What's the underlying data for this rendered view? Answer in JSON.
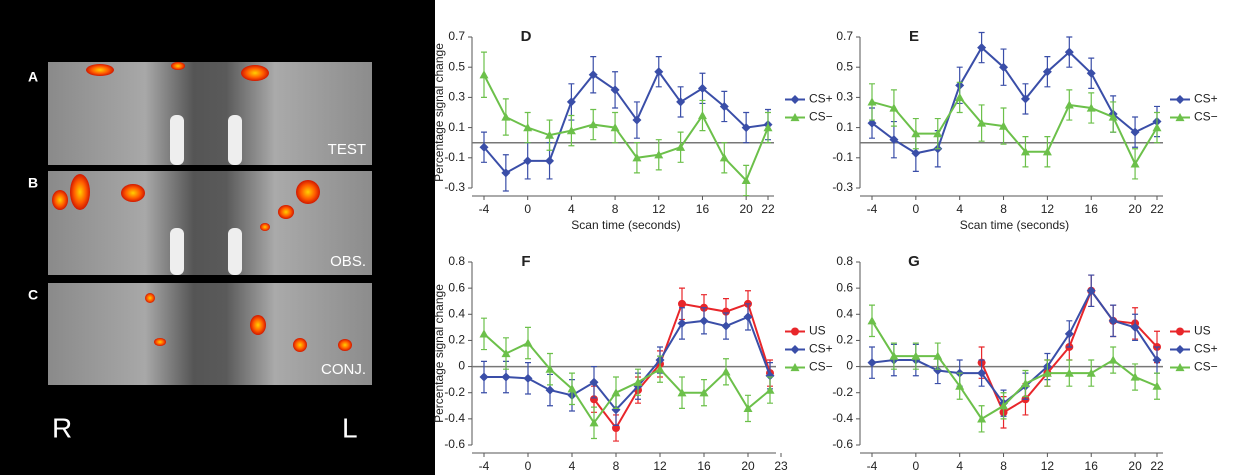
{
  "image_panel": {
    "panels": [
      {
        "letter": "A",
        "label": "TEST"
      },
      {
        "letter": "B",
        "label": "OBS."
      },
      {
        "letter": "C",
        "label": "CONJ."
      }
    ],
    "left_side": "R",
    "right_side": "L"
  },
  "chart_data": [
    {
      "type": "line",
      "label": "D",
      "y_label": "Percentage signal change",
      "x_label": "Scan time (seconds)",
      "x": [
        -4,
        -2,
        0,
        2,
        4,
        6,
        8,
        10,
        12,
        14,
        16,
        18,
        20,
        22
      ],
      "xlim": [
        -4,
        22
      ],
      "xticks": [
        -4,
        0,
        4,
        8,
        12,
        16,
        20,
        22
      ],
      "ylim": [
        -0.3,
        0.7
      ],
      "yticks": [
        -0.3,
        -0.1,
        0.1,
        0.3,
        0.5,
        0.7
      ],
      "reference_line": 0,
      "series": [
        {
          "name": "CS+",
          "color": "#3a4ea8",
          "marker": "diamond",
          "values": [
            -0.03,
            -0.2,
            -0.12,
            -0.12,
            0.27,
            0.45,
            0.35,
            0.15,
            0.47,
            0.27,
            0.36,
            0.24,
            0.1,
            0.12
          ],
          "errors": [
            0.1,
            0.12,
            0.12,
            0.12,
            0.12,
            0.12,
            0.12,
            0.12,
            0.1,
            0.1,
            0.1,
            0.1,
            0.1,
            0.1
          ]
        },
        {
          "name": "CS−",
          "color": "#6cc04a",
          "marker": "triangle",
          "values": [
            0.45,
            0.17,
            0.1,
            0.05,
            0.08,
            0.12,
            0.1,
            -0.1,
            -0.08,
            -0.03,
            0.18,
            -0.1,
            -0.25,
            0.1
          ],
          "errors": [
            0.15,
            0.12,
            0.1,
            0.1,
            0.1,
            0.1,
            0.1,
            0.1,
            0.1,
            0.1,
            0.1,
            0.1,
            0.1,
            0.1
          ]
        }
      ]
    },
    {
      "type": "line",
      "label": "E",
      "x_label": "Scan time (seconds)",
      "x": [
        -4,
        -2,
        0,
        2,
        4,
        6,
        8,
        10,
        12,
        14,
        16,
        18,
        20,
        22
      ],
      "xlim": [
        -4,
        22
      ],
      "xticks": [
        -4,
        0,
        4,
        8,
        12,
        16,
        20,
        22
      ],
      "ylim": [
        -0.3,
        0.7
      ],
      "yticks": [
        -0.3,
        -0.1,
        0.1,
        0.3,
        0.5,
        0.7
      ],
      "reference_line": 0,
      "series": [
        {
          "name": "CS+",
          "color": "#3a4ea8",
          "marker": "diamond",
          "values": [
            0.13,
            0.02,
            -0.07,
            -0.04,
            0.38,
            0.63,
            0.5,
            0.29,
            0.47,
            0.6,
            0.46,
            0.19,
            0.07,
            0.14
          ],
          "errors": [
            0.1,
            0.12,
            0.12,
            0.12,
            0.12,
            0.1,
            0.12,
            0.1,
            0.1,
            0.1,
            0.1,
            0.12,
            0.1,
            0.1
          ]
        },
        {
          "name": "CS−",
          "color": "#6cc04a",
          "marker": "triangle",
          "values": [
            0.27,
            0.23,
            0.06,
            0.06,
            0.3,
            0.13,
            0.11,
            -0.06,
            -0.06,
            0.25,
            0.23,
            0.17,
            -0.14,
            0.1
          ],
          "errors": [
            0.12,
            0.12,
            0.1,
            0.1,
            0.1,
            0.12,
            0.12,
            0.1,
            0.1,
            0.1,
            0.1,
            0.1,
            0.1,
            0.1
          ]
        }
      ]
    },
    {
      "type": "line",
      "label": "F",
      "y_label": "Percentage signal change",
      "x_label": "Scan time (seconds)",
      "x": [
        -4,
        -2,
        0,
        2,
        4,
        6,
        8,
        10,
        12,
        14,
        16,
        18,
        20,
        22
      ],
      "xlim": [
        -4,
        22
      ],
      "xticks": [
        -4,
        0,
        4,
        8,
        12,
        16,
        20,
        23
      ],
      "ylim": [
        -0.6,
        0.8
      ],
      "yticks": [
        -0.6,
        -0.4,
        -0.2,
        0,
        0.2,
        0.4,
        0.6,
        0.8
      ],
      "reference_line": 0,
      "series": [
        {
          "name": "US",
          "color": "#e8262a",
          "marker": "circle",
          "values": [
            null,
            null,
            null,
            null,
            null,
            -0.25,
            -0.47,
            -0.18,
            0.02,
            0.48,
            0.45,
            0.42,
            0.48,
            -0.05
          ],
          "errors": [
            null,
            null,
            null,
            null,
            null,
            0.1,
            0.1,
            0.1,
            0.1,
            0.12,
            0.1,
            0.1,
            0.1,
            0.1
          ]
        },
        {
          "name": "CS+",
          "color": "#3a4ea8",
          "marker": "diamond",
          "values": [
            -0.08,
            -0.08,
            -0.09,
            -0.18,
            -0.22,
            -0.12,
            -0.33,
            -0.15,
            0.05,
            0.33,
            0.35,
            0.31,
            0.38,
            -0.07
          ],
          "errors": [
            0.12,
            0.12,
            0.12,
            0.12,
            0.12,
            0.12,
            0.12,
            0.1,
            0.1,
            0.12,
            0.1,
            0.1,
            0.1,
            0.1
          ]
        },
        {
          "name": "CS−",
          "color": "#6cc04a",
          "marker": "triangle",
          "values": [
            0.25,
            0.1,
            0.18,
            -0.02,
            -0.17,
            -0.43,
            -0.2,
            -0.12,
            -0.02,
            -0.2,
            -0.2,
            -0.04,
            -0.32,
            -0.18
          ],
          "errors": [
            0.12,
            0.12,
            0.12,
            0.12,
            0.12,
            0.12,
            0.12,
            0.1,
            0.1,
            0.12,
            0.1,
            0.1,
            0.1,
            0.1
          ]
        }
      ]
    },
    {
      "type": "line",
      "label": "G",
      "x_label": "Scan time (seconds)",
      "x": [
        -4,
        -2,
        0,
        2,
        4,
        6,
        8,
        10,
        12,
        14,
        16,
        18,
        20,
        22
      ],
      "xlim": [
        -4,
        22
      ],
      "xticks": [
        -4,
        0,
        4,
        8,
        12,
        16,
        20,
        22
      ],
      "ylim": [
        -0.6,
        0.8
      ],
      "yticks": [
        -0.6,
        -0.4,
        -0.2,
        0,
        0.2,
        0.4,
        0.6,
        0.8
      ],
      "reference_line": 0,
      "series": [
        {
          "name": "US",
          "color": "#e8262a",
          "marker": "circle",
          "values": [
            null,
            null,
            null,
            null,
            null,
            0.03,
            -0.35,
            -0.25,
            -0.05,
            0.15,
            0.58,
            0.35,
            0.33,
            0.15
          ],
          "errors": [
            null,
            null,
            null,
            null,
            null,
            0.12,
            0.12,
            0.12,
            0.1,
            0.1,
            0.12,
            0.12,
            0.12,
            0.12
          ]
        },
        {
          "name": "CS+",
          "color": "#3a4ea8",
          "marker": "diamond",
          "values": [
            0.03,
            0.05,
            0.05,
            -0.03,
            -0.05,
            -0.05,
            -0.28,
            -0.15,
            0.0,
            0.25,
            0.58,
            0.35,
            0.3,
            0.05
          ],
          "errors": [
            0.12,
            0.12,
            0.12,
            0.1,
            0.1,
            0.1,
            0.1,
            0.1,
            0.1,
            0.1,
            0.12,
            0.12,
            0.1,
            0.1
          ]
        },
        {
          "name": "CS−",
          "color": "#6cc04a",
          "marker": "triangle",
          "values": [
            0.35,
            0.08,
            0.08,
            0.08,
            -0.15,
            -0.4,
            -0.3,
            -0.13,
            -0.05,
            -0.05,
            -0.05,
            0.05,
            -0.08,
            -0.15
          ],
          "errors": [
            0.12,
            0.1,
            0.1,
            0.1,
            0.1,
            0.1,
            0.1,
            0.1,
            0.1,
            0.1,
            0.1,
            0.1,
            0.1,
            0.1
          ]
        }
      ]
    }
  ]
}
